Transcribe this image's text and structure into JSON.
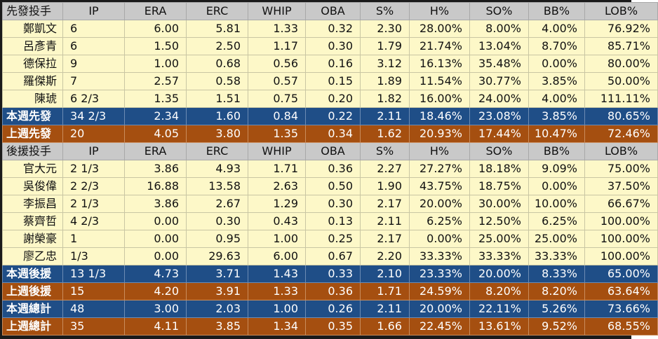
{
  "colors": {
    "header_bg": "#c9c9c9",
    "row_bg": "#fdf8c8",
    "this_week_bg": "#1f4e87",
    "last_week_bg": "#a54f10",
    "frame": "#1a1a1a"
  },
  "starters": {
    "header": [
      "先發投手",
      "IP",
      "ERA",
      "ERC",
      "WHIP",
      "OBA",
      "S%",
      "H%",
      "SO%",
      "BB%",
      "LOB%"
    ],
    "rows": [
      [
        "鄭凱文",
        "6",
        "6.00",
        "5.81",
        "1.33",
        "0.32",
        "2.30",
        "28.00%",
        "8.00%",
        "4.00%",
        "76.92%"
      ],
      [
        "呂彥青",
        "6",
        "1.50",
        "2.50",
        "1.17",
        "0.30",
        "1.79",
        "21.74%",
        "13.04%",
        "8.70%",
        "85.71%"
      ],
      [
        "德保拉",
        "9",
        "1.00",
        "0.68",
        "0.56",
        "0.16",
        "3.12",
        "16.13%",
        "35.48%",
        "0.00%",
        "80.00%"
      ],
      [
        "羅傑斯",
        "7",
        "2.57",
        "0.58",
        "0.57",
        "0.15",
        "1.89",
        "11.54%",
        "30.77%",
        "3.85%",
        "50.00%"
      ],
      [
        "陳琥",
        "6 2/3",
        "1.35",
        "1.51",
        "0.75",
        "0.20",
        "1.82",
        "16.00%",
        "24.00%",
        "4.00%",
        "111.11%"
      ]
    ],
    "this_week": [
      "本週先發",
      "34 2/3",
      "2.34",
      "1.60",
      "0.84",
      "0.22",
      "2.11",
      "18.46%",
      "23.08%",
      "3.85%",
      "80.65%"
    ],
    "last_week": [
      "上週先發",
      "20",
      "4.05",
      "3.80",
      "1.35",
      "0.34",
      "1.62",
      "20.93%",
      "17.44%",
      "10.47%",
      "72.46%"
    ]
  },
  "relievers": {
    "header": [
      "後援投手",
      "IP",
      "ERA",
      "ERC",
      "WHIP",
      "OBA",
      "S%",
      "H%",
      "SO%",
      "BB%",
      "LOB%"
    ],
    "rows": [
      [
        "官大元",
        "2 1/3",
        "3.86",
        "4.93",
        "1.71",
        "0.36",
        "2.27",
        "27.27%",
        "18.18%",
        "9.09%",
        "75.00%"
      ],
      [
        "吳俊偉",
        "2 2/3",
        "16.88",
        "13.58",
        "2.63",
        "0.50",
        "1.90",
        "43.75%",
        "18.75%",
        "0.00%",
        "37.50%"
      ],
      [
        "李振昌",
        "2 1/3",
        "3.86",
        "2.67",
        "1.29",
        "0.30",
        "2.17",
        "20.00%",
        "30.00%",
        "10.00%",
        "66.67%"
      ],
      [
        "蔡齊哲",
        "4 2/3",
        "0.00",
        "0.30",
        "0.43",
        "0.13",
        "2.11",
        "6.25%",
        "12.50%",
        "6.25%",
        "100.00%"
      ],
      [
        "謝榮豪",
        "1",
        "0.00",
        "0.95",
        "1.00",
        "0.25",
        "2.17",
        "0.00%",
        "25.00%",
        "25.00%",
        "100.00%"
      ],
      [
        "廖乙忠",
        "1/3",
        "0.00",
        "29.63",
        "6.00",
        "0.67",
        "2.20",
        "33.33%",
        "33.33%",
        "33.33%",
        "100.00%"
      ]
    ],
    "this_week": [
      "本週後援",
      "13 1/3",
      "4.73",
      "3.71",
      "1.43",
      "0.33",
      "2.10",
      "23.33%",
      "20.00%",
      "8.33%",
      "65.00%"
    ],
    "last_week": [
      "上週後援",
      "15",
      "4.20",
      "3.91",
      "1.33",
      "0.36",
      "1.71",
      "24.59%",
      "8.20%",
      "8.20%",
      "63.64%"
    ]
  },
  "totals": {
    "this_week": [
      "本週總計",
      "48",
      "3.00",
      "2.03",
      "1.00",
      "0.26",
      "2.11",
      "20.00%",
      "22.11%",
      "5.26%",
      "73.66%"
    ],
    "last_week": [
      "上週總計",
      "35",
      "4.11",
      "3.85",
      "1.34",
      "0.35",
      "1.66",
      "22.45%",
      "13.61%",
      "9.52%",
      "68.55%"
    ]
  }
}
